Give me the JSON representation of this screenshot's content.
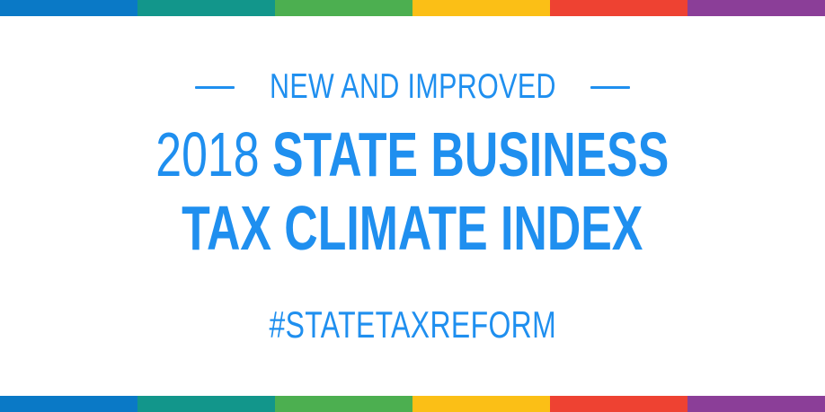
{
  "colors": {
    "text": "#1f8fef",
    "background": "#ffffff",
    "stripe": [
      "#0a79c6",
      "#12968b",
      "#4caf50",
      "#fbbf16",
      "#ee4232",
      "#8b3e98"
    ]
  },
  "header": {
    "eyebrow": "NEW AND IMPROVED"
  },
  "title": {
    "year": "2018",
    "line1_bold": "STATE BUSINESS",
    "line2": "TAX CLIMATE INDEX"
  },
  "hashtag": "#STATETAXREFORM"
}
